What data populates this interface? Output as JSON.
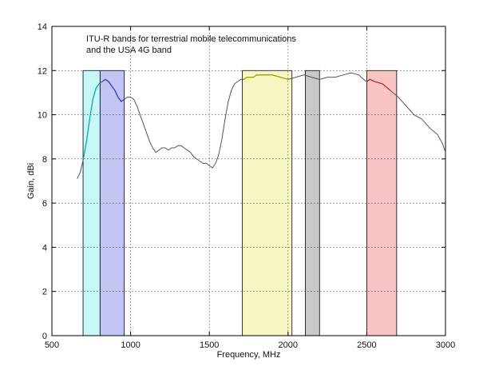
{
  "chart_data": {
    "type": "line",
    "title": "",
    "xlabel": "Frequency, MHz",
    "ylabel": "Gain, dBi",
    "xlim": [
      500,
      3000
    ],
    "ylim": [
      0,
      14
    ],
    "x_ticks": [
      500,
      1000,
      1500,
      2000,
      2500,
      3000
    ],
    "y_ticks": [
      0,
      2,
      4,
      6,
      8,
      10,
      12,
      14
    ],
    "grid": true,
    "legend": "none",
    "annotation": [
      "ITU-R bands for terrestrial mobile telecommunications",
      "and the USA 4G band"
    ],
    "bands": [
      {
        "x_start": 698,
        "x_end": 806,
        "y_top": 12,
        "color": "#c8f7f7",
        "series_color": "#00b0b0"
      },
      {
        "x_start": 806,
        "x_end": 960,
        "y_top": 12,
        "color": "#c4c4f2",
        "series_color": "#3333cc"
      },
      {
        "x_start": 1710,
        "x_end": 2025,
        "y_top": 12,
        "color": "#f7f7c4",
        "series_color": "#a0a000"
      },
      {
        "x_start": 2110,
        "x_end": 2200,
        "y_top": 12,
        "color": "#c8c8c8",
        "series_color": "#666666"
      },
      {
        "x_start": 2500,
        "x_end": 2690,
        "y_top": 12,
        "color": "#f8c4c4",
        "series_color": "#cc2222"
      }
    ],
    "series": [
      {
        "color": "#555555",
        "x": [
          660,
          680,
          700,
          720,
          740,
          760,
          780,
          800,
          820,
          840,
          860,
          880,
          900,
          920,
          940,
          960,
          980,
          1000,
          1020,
          1040,
          1060,
          1080,
          1100,
          1120,
          1140,
          1160,
          1180,
          1200,
          1220,
          1240,
          1260,
          1280,
          1300,
          1320,
          1340,
          1360,
          1380,
          1400,
          1420,
          1440,
          1460,
          1480,
          1500,
          1520,
          1540,
          1560,
          1580,
          1600,
          1620,
          1640,
          1660,
          1680,
          1700,
          1720,
          1740,
          1760,
          1780,
          1800,
          1850,
          1900,
          1950,
          2000,
          2050,
          2100,
          2150,
          2200,
          2250,
          2300,
          2350,
          2400,
          2450,
          2480,
          2500,
          2520,
          2550,
          2600,
          2650,
          2700,
          2750,
          2800,
          2850,
          2900,
          2950,
          2980,
          3000
        ],
        "y": [
          7.1,
          7.4,
          8.0,
          8.8,
          9.8,
          10.7,
          11.2,
          11.4,
          11.5,
          11.6,
          11.5,
          11.3,
          11.1,
          10.8,
          10.6,
          10.7,
          10.8,
          10.8,
          10.7,
          10.4,
          10.0,
          9.6,
          9.2,
          8.8,
          8.5,
          8.3,
          8.4,
          8.5,
          8.5,
          8.4,
          8.5,
          8.5,
          8.6,
          8.6,
          8.5,
          8.4,
          8.3,
          8.1,
          8.0,
          7.9,
          7.8,
          7.8,
          7.7,
          7.6,
          7.8,
          8.2,
          8.9,
          9.8,
          10.6,
          11.1,
          11.4,
          11.5,
          11.6,
          11.6,
          11.7,
          11.7,
          11.7,
          11.8,
          11.8,
          11.8,
          11.7,
          11.6,
          11.7,
          11.8,
          11.7,
          11.6,
          11.7,
          11.7,
          11.8,
          11.9,
          11.8,
          11.6,
          11.5,
          11.6,
          11.5,
          11.4,
          11.1,
          10.8,
          10.4,
          10.0,
          9.8,
          9.4,
          9.1,
          8.7,
          8.3
        ]
      }
    ]
  }
}
